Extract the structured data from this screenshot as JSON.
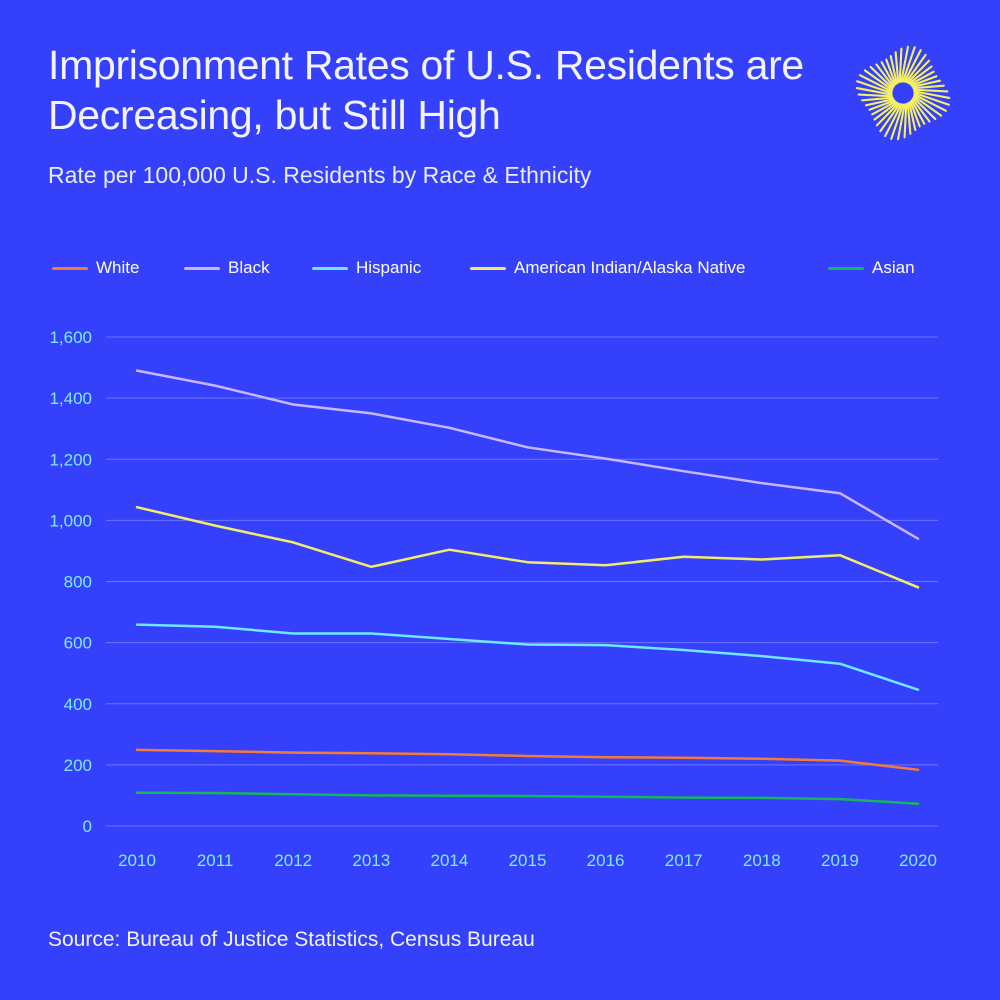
{
  "title": "Imprisonment Rates of U.S. Residents are Decreasing, but Still High",
  "subtitle": "Rate per 100,000 U.S. Residents by Race & Ethnicity",
  "source": "Source: Bureau of Justice Statistics, Census Bureau",
  "colors": {
    "background": "#3440fa",
    "grid": "#6a74ff",
    "axis_text": "#7fe9ff",
    "logo": "#f5ef63"
  },
  "legend": [
    {
      "label": "White",
      "color": "#f47a3a"
    },
    {
      "label": "Black",
      "color": "#c9b6ff"
    },
    {
      "label": "Hispanic",
      "color": "#6fe8ff"
    },
    {
      "label": "American Indian/Alaska Native",
      "color": "#f4ec6a"
    },
    {
      "label": "Asian",
      "color": "#16b75a"
    }
  ],
  "chart_data": {
    "type": "line",
    "x": [
      2010,
      2011,
      2012,
      2013,
      2014,
      2015,
      2016,
      2017,
      2018,
      2019,
      2020
    ],
    "x_tick_labels": [
      "2010",
      "2011",
      "2012",
      "2013",
      "2014",
      "2015",
      "2016",
      "2017",
      "2018",
      "2019",
      "2020"
    ],
    "y_ticks": [
      0,
      200,
      400,
      600,
      800,
      1000,
      1200,
      1400,
      1600
    ],
    "y_tick_labels": [
      "0",
      "200",
      "400",
      "600",
      "800",
      "1,000",
      "1,200",
      "1,400",
      "1,600"
    ],
    "ylim": [
      0,
      1600
    ],
    "grid": true,
    "legend_position": "top",
    "series": [
      {
        "name": "White",
        "color": "#f47a3a",
        "values": [
          249,
          245,
          240,
          238,
          235,
          229,
          225,
          223,
          220,
          214,
          184
        ]
      },
      {
        "name": "Black",
        "color": "#c9b6ff",
        "values": [
          1490,
          1441,
          1379,
          1350,
          1303,
          1239,
          1202,
          1161,
          1122,
          1089,
          940
        ]
      },
      {
        "name": "Hispanic",
        "color": "#6fe8ff",
        "values": [
          659,
          652,
          630,
          630,
          612,
          594,
          592,
          576,
          556,
          531,
          446
        ]
      },
      {
        "name": "American Indian/Alaska Native",
        "color": "#f4ec6a",
        "values": [
          1043,
          983,
          928,
          848,
          904,
          863,
          853,
          881,
          872,
          886,
          781
        ]
      },
      {
        "name": "Asian",
        "color": "#16b75a",
        "values": [
          109,
          108,
          104,
          100,
          99,
          98,
          96,
          93,
          92,
          88,
          73
        ]
      }
    ]
  }
}
